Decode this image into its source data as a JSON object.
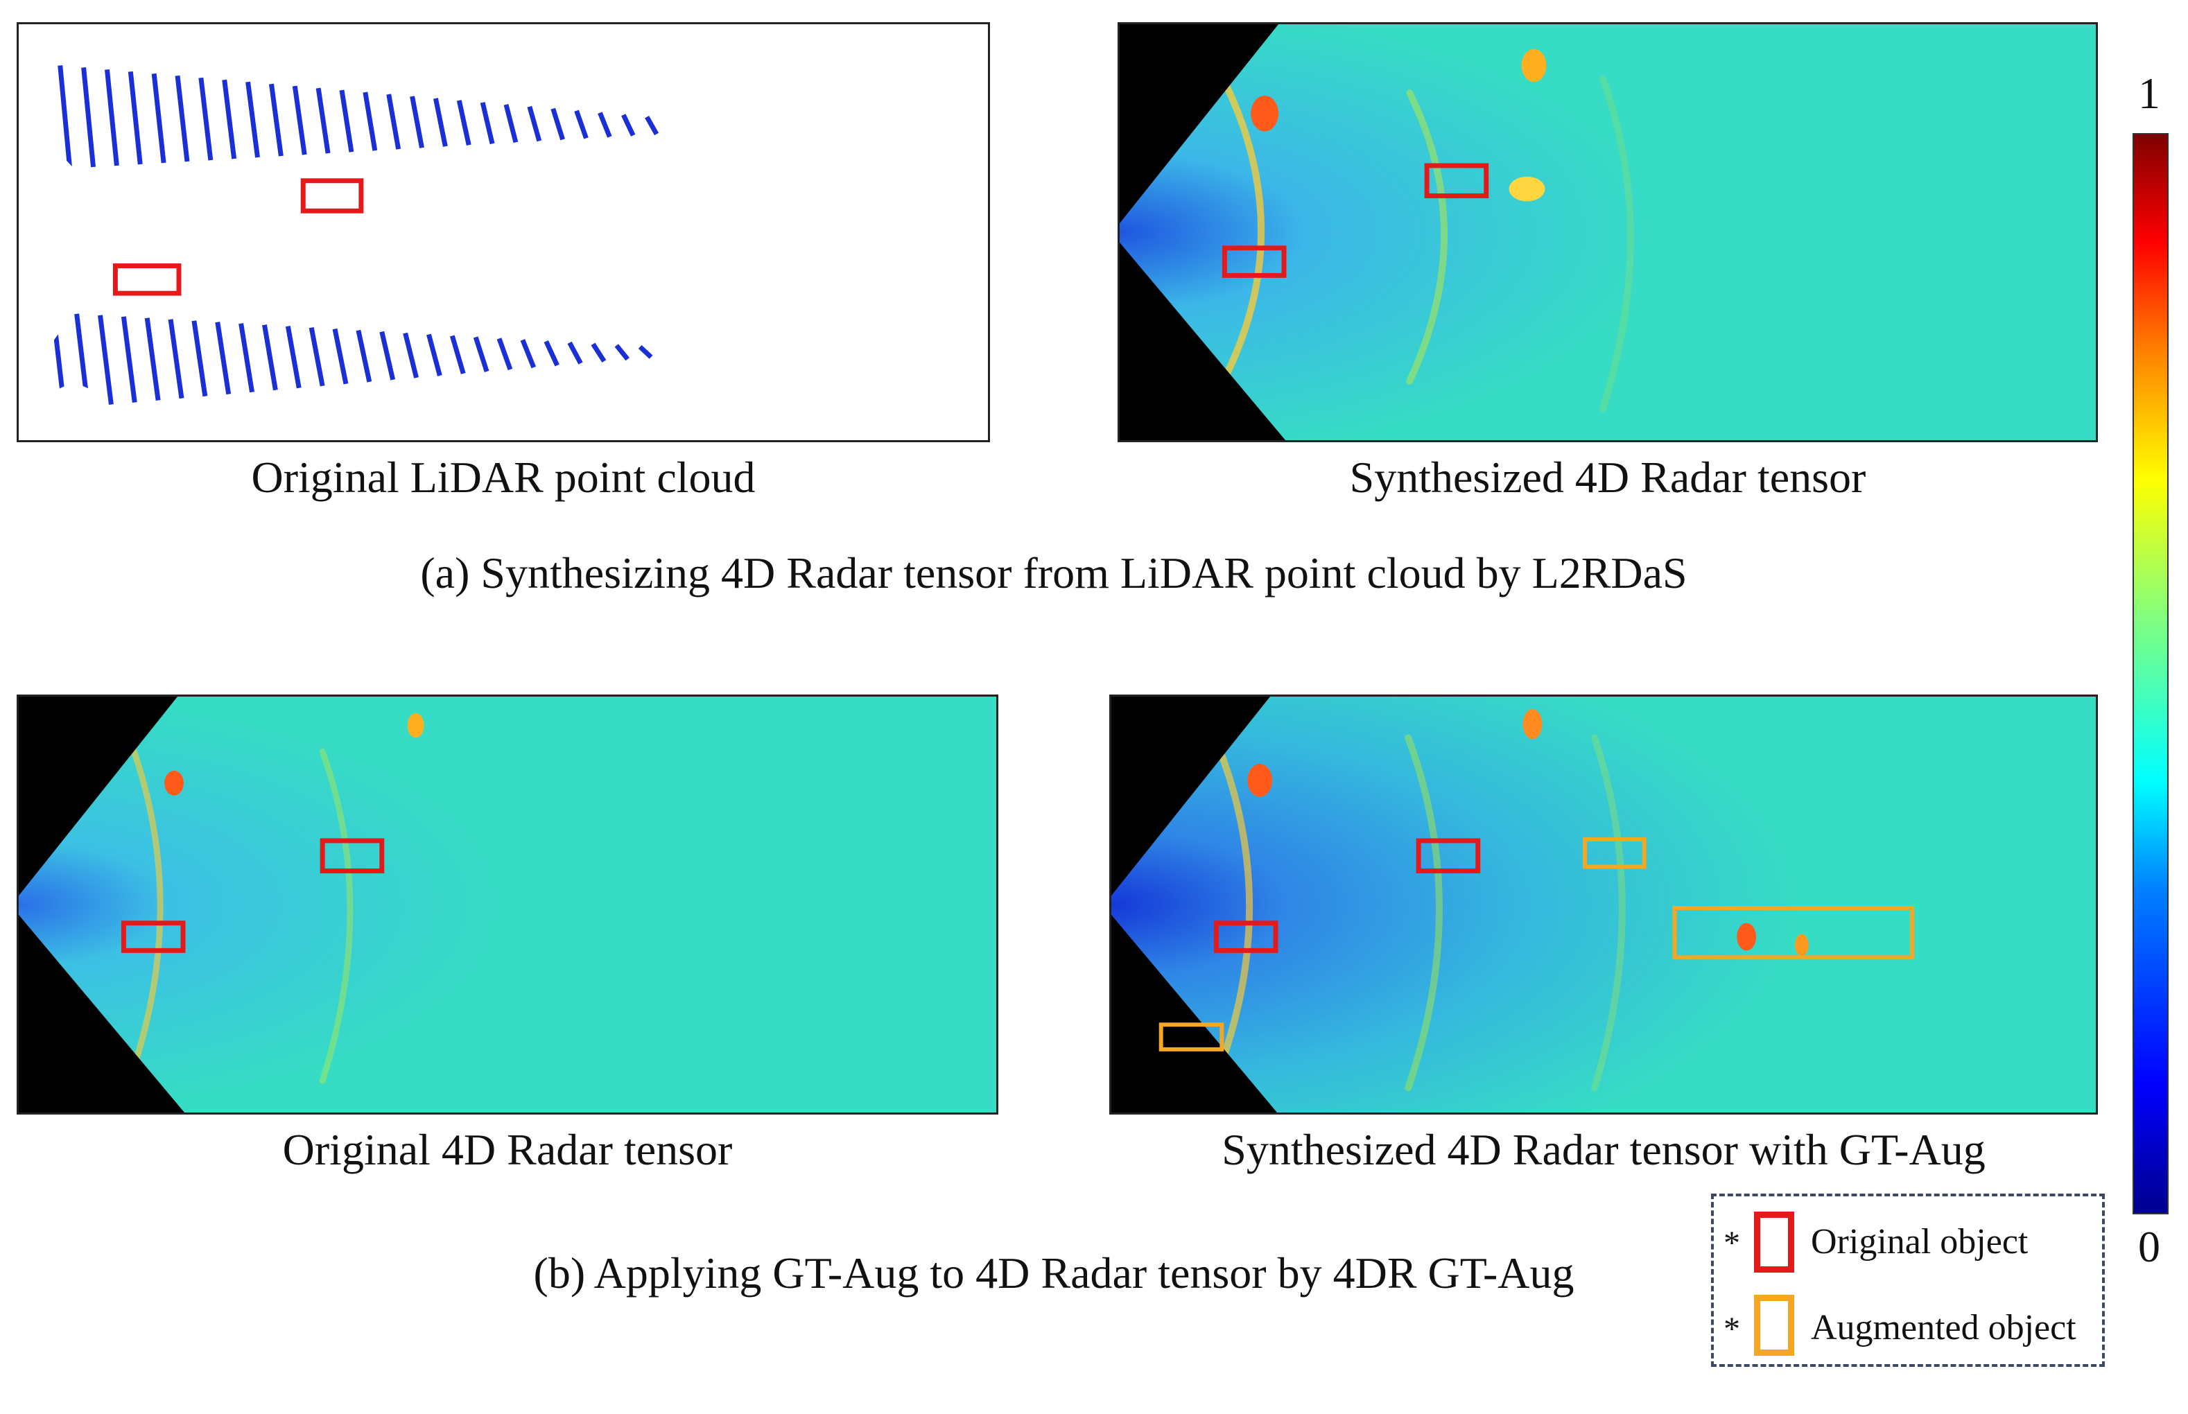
{
  "panels": {
    "lidar": {
      "caption": "Original LiDAR point cloud"
    },
    "synth": {
      "caption": "Synthesized 4D Radar tensor"
    },
    "orig": {
      "caption": "Original 4D Radar tensor"
    },
    "gtaug": {
      "caption": "Synthesized 4D Radar tensor with GT-Aug"
    }
  },
  "section_a_title": "(a) Synthesizing 4D Radar tensor from LiDAR point cloud by L2RDaS",
  "section_b_title": "(b) Applying GT-Aug to 4D Radar tensor by 4DR GT-Aug",
  "colorbar": {
    "max_label": "1",
    "min_label": "0"
  },
  "legend": {
    "items": [
      {
        "marker": "*",
        "label": "Original object",
        "color": "#e41a1a"
      },
      {
        "marker": "*",
        "label": "Augmented object",
        "color": "#f5a623"
      }
    ]
  },
  "colors": {
    "original_box": "#e41a1a",
    "augmented_box": "#f5a623",
    "radar_base": "#34dcc6",
    "radar_low": "#1f7fe0",
    "radar_high": "#ff4a1a"
  }
}
